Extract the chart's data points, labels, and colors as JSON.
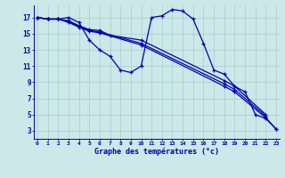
{
  "title": "Graphe des températures (°c)",
  "background_color": "#cce8e8",
  "grid_color": "#aacccc",
  "line_color": "#0000aa",
  "x_hours": [
    0,
    1,
    2,
    3,
    4,
    5,
    6,
    7,
    8,
    9,
    10,
    11,
    12,
    13,
    14,
    15,
    16,
    17,
    18,
    19,
    20,
    21,
    22,
    23
  ],
  "ylim": [
    2,
    18.5
  ],
  "yticks": [
    3,
    5,
    7,
    9,
    11,
    13,
    15,
    17
  ],
  "xlim": [
    -0.3,
    23.3
  ],
  "series1_x": [
    0,
    1,
    2,
    3,
    4,
    5,
    6,
    7,
    8,
    9,
    10,
    11,
    12,
    13,
    14,
    15,
    16,
    17,
    18,
    19,
    20,
    21,
    22,
    23
  ],
  "series1_y": [
    17.0,
    16.8,
    16.8,
    17.0,
    16.4,
    14.2,
    13.0,
    12.2,
    10.5,
    10.2,
    11.0,
    17.0,
    17.2,
    18.0,
    17.8,
    16.8,
    13.8,
    10.5,
    10.0,
    8.5,
    7.8,
    5.0,
    4.5,
    3.2
  ],
  "series2_x": [
    0,
    1,
    2,
    3,
    4,
    5,
    6,
    7,
    10,
    18,
    19,
    22
  ],
  "series2_y": [
    17.0,
    16.8,
    16.8,
    16.6,
    16.0,
    15.5,
    15.4,
    14.8,
    14.2,
    9.2,
    8.5,
    5.0
  ],
  "series3_x": [
    0,
    1,
    2,
    3,
    4,
    5,
    6,
    10,
    18,
    19,
    22
  ],
  "series3_y": [
    17.0,
    16.8,
    16.8,
    16.5,
    15.9,
    15.4,
    15.2,
    13.8,
    8.8,
    8.1,
    4.8
  ],
  "series4_x": [
    0,
    1,
    2,
    3,
    4,
    5,
    6,
    10,
    18,
    19,
    22,
    23
  ],
  "series4_y": [
    17.0,
    16.8,
    16.8,
    16.4,
    15.8,
    15.3,
    15.1,
    13.6,
    8.5,
    7.8,
    4.6,
    3.2
  ]
}
